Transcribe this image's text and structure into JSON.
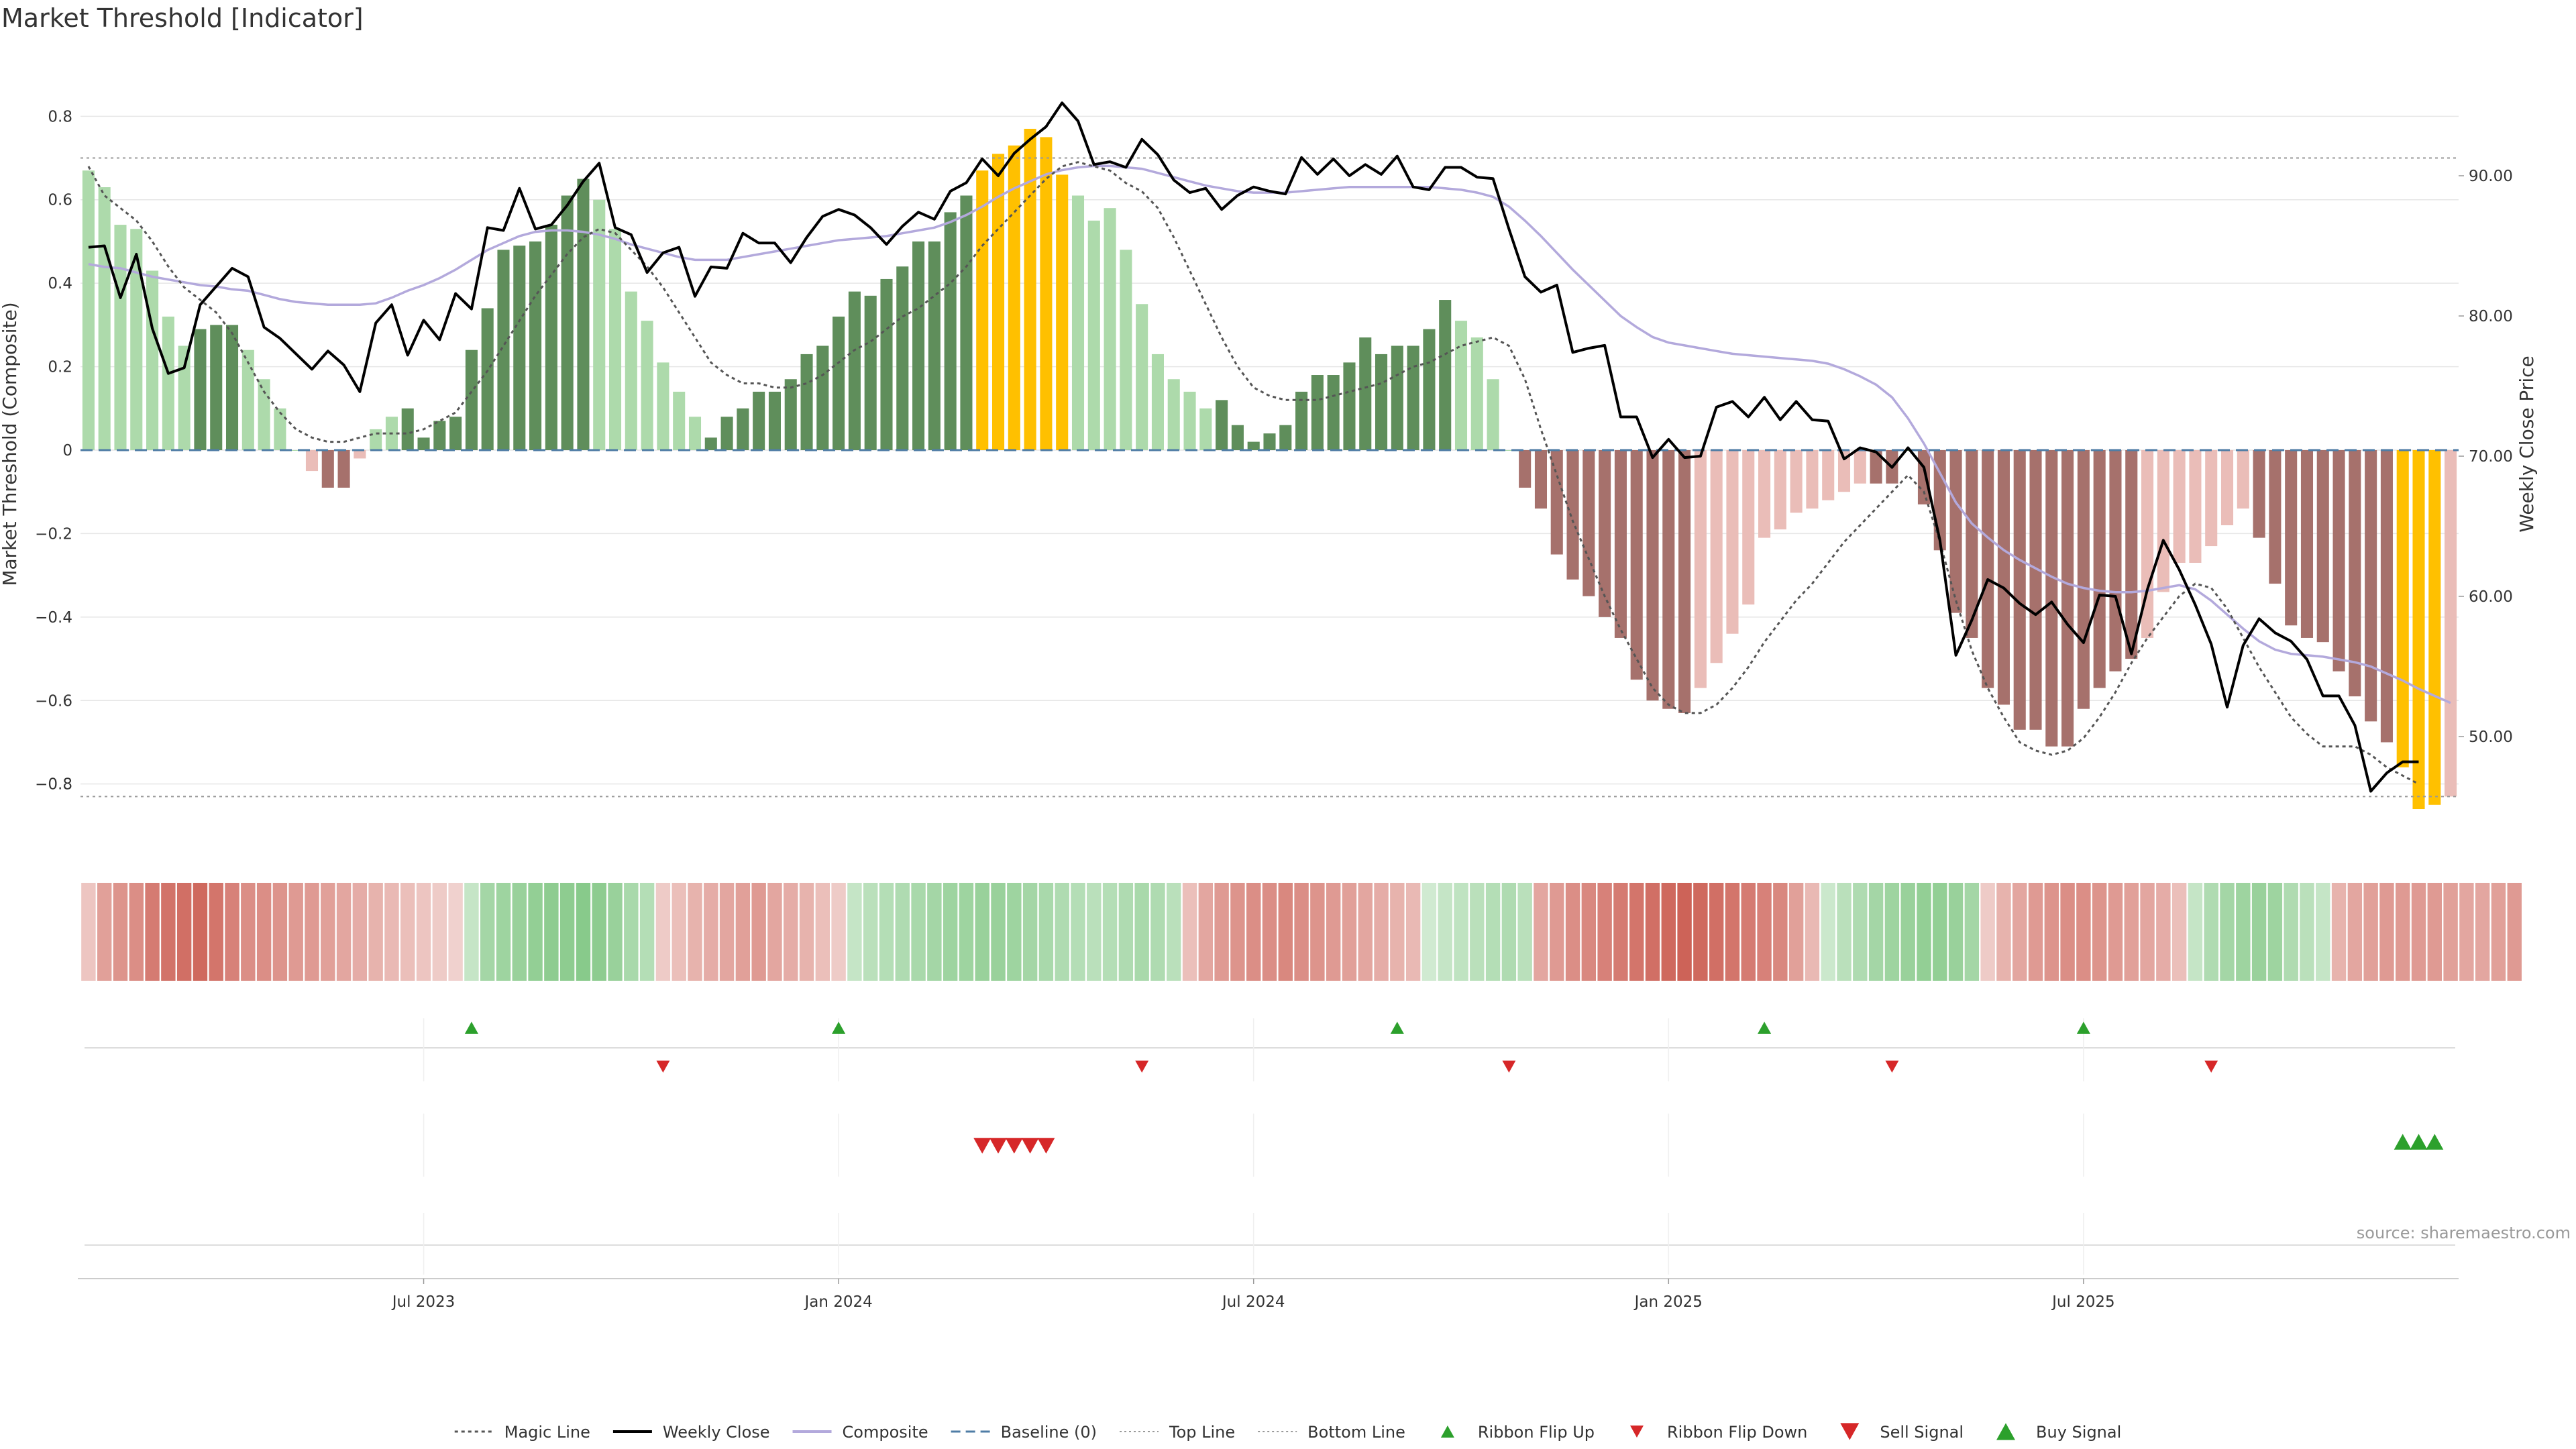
{
  "chart_data": {
    "type": "bar",
    "title": "Market Threshold [Indicator]",
    "ylabel": "Market Threshold (Composite)",
    "y2label": "Weekly Close Price",
    "source": "source: sharemaestro.com",
    "ylim": [
      -0.95,
      0.95
    ],
    "y_ticks": [
      0.8,
      0.6,
      0.4,
      0.2,
      0,
      -0.2,
      -0.4,
      -0.6,
      -0.8
    ],
    "y_tick_labels": [
      "0.8",
      "0.6",
      "0.4",
      "0.2",
      "0",
      "−0.2",
      "−0.4",
      "−0.6",
      "−0.8"
    ],
    "y2_ticks": [
      90,
      80,
      70,
      60,
      50
    ],
    "y2_tick_labels": [
      "90.00",
      "80.00",
      "70.00",
      "60.00",
      "50.00"
    ],
    "x_ticks": [
      {
        "week": 21.5,
        "label": "Jul 2023"
      },
      {
        "week": 47.5,
        "label": "Jan 2024"
      },
      {
        "week": 73.5,
        "label": "Jul 2024"
      },
      {
        "week": 99.5,
        "label": "Jan 2025"
      },
      {
        "week": 125.5,
        "label": "Jul 2025"
      }
    ],
    "top_line": 0.7,
    "bottom_line": -0.83,
    "baseline": 0,
    "composite": [
      0.67,
      0.63,
      0.54,
      0.53,
      0.43,
      0.32,
      0.25,
      0.29,
      0.3,
      0.3,
      0.24,
      0.17,
      0.1,
      0,
      -0.05,
      -0.09,
      -0.09,
      -0.02,
      0.05,
      0.08,
      0.1,
      0.03,
      0.07,
      0.08,
      0.24,
      0.34,
      0.48,
      0.49,
      0.5,
      0.54,
      0.61,
      0.65,
      0.6,
      0.53,
      0.38,
      0.31,
      0.21,
      0.14,
      0.08,
      0.03,
      0.08,
      0.1,
      0.14,
      0.14,
      0.17,
      0.23,
      0.25,
      0.32,
      0.38,
      0.37,
      0.41,
      0.44,
      0.5,
      0.5,
      0.57,
      0.61,
      0.67,
      0.71,
      0.73,
      0.77,
      0.75,
      0.66,
      0.61,
      0.55,
      0.58,
      0.48,
      0.35,
      0.23,
      0.17,
      0.14,
      0.1,
      0.12,
      0.06,
      0.02,
      0.04,
      0.06,
      0.14,
      0.18,
      0.18,
      0.21,
      0.27,
      0.23,
      0.25,
      0.25,
      0.29,
      0.36,
      0.31,
      0.27,
      0.17,
      0,
      -0.09,
      -0.14,
      -0.25,
      -0.31,
      -0.35,
      -0.4,
      -0.45,
      -0.55,
      -0.6,
      -0.62,
      -0.63,
      -0.57,
      -0.51,
      -0.44,
      -0.37,
      -0.21,
      -0.19,
      -0.15,
      -0.14,
      -0.12,
      -0.1,
      -0.08,
      -0.08,
      -0.08,
      0,
      -0.13,
      -0.24,
      -0.39,
      -0.45,
      -0.57,
      -0.61,
      -0.67,
      -0.67,
      -0.71,
      -0.71,
      -0.62,
      -0.57,
      -0.53,
      -0.5,
      -0.45,
      -0.34,
      -0.27,
      -0.27,
      -0.23,
      -0.18,
      -0.14,
      -0.21,
      -0.32,
      -0.42,
      -0.45,
      -0.46,
      -0.53,
      -0.59,
      -0.65,
      -0.7,
      -0.76,
      -0.86,
      -0.85,
      -0.83
    ],
    "weekly_close": [
      84.9,
      85.0,
      81.3,
      84.4,
      79.1,
      75.9,
      76.3,
      80.8,
      82.1,
      83.4,
      82.8,
      79.2,
      78.4,
      77.3,
      76.2,
      77.5,
      76.5,
      74.6,
      79.5,
      80.8,
      77.2,
      79.7,
      78.3,
      81.6,
      80.5,
      86.3,
      86.1,
      89.1,
      86.2,
      86.5,
      87.9,
      89.6,
      90.9,
      86.3,
      85.8,
      83.1,
      84.5,
      84.9,
      81.4,
      83.5,
      83.4,
      85.9,
      85.2,
      85.2,
      83.8,
      85.6,
      87.1,
      87.6,
      87.2,
      86.3,
      85.1,
      86.4,
      87.4,
      86.9,
      88.9,
      89.5,
      91.2,
      90.0,
      91.6,
      92.6,
      93.5,
      95.2,
      93.9,
      90.8,
      91.0,
      90.6,
      92.6,
      91.5,
      89.7,
      88.8,
      89.1,
      87.6,
      88.6,
      89.2,
      88.9,
      88.7,
      91.3,
      90.1,
      91.2,
      90.0,
      90.8,
      90.1,
      91.4,
      89.2,
      89.0,
      90.6,
      90.6,
      89.9,
      89.8,
      86.2,
      82.8,
      81.7,
      82.2,
      77.4,
      77.7,
      77.9,
      72.8,
      72.8,
      69.9,
      71.2,
      69.9,
      70.0,
      73.5,
      73.9,
      72.8,
      74.2,
      72.6,
      73.9,
      72.6,
      72.5,
      69.8,
      70.6,
      70.3,
      69.2,
      70.6,
      69.2,
      64.0,
      55.8,
      58.3,
      61.2,
      60.6,
      59.5,
      58.7,
      59.6,
      58.0,
      56.7,
      60.1,
      60.0,
      55.9,
      60.5,
      64.0,
      61.9,
      59.4,
      56.6,
      52.1,
      56.5,
      58.4,
      57.4,
      56.8,
      55.5,
      52.9,
      52.9,
      50.8,
      46.1,
      47.4,
      48.2,
      48.2
    ],
    "composite_line": [
      83.7,
      83.5,
      83.4,
      83.1,
      82.8,
      82.6,
      82.4,
      82.2,
      82.1,
      81.9,
      81.8,
      81.5,
      81.2,
      81.0,
      80.9,
      80.8,
      80.8,
      80.8,
      80.9,
      81.3,
      81.8,
      82.2,
      82.7,
      83.3,
      84.0,
      84.7,
      85.2,
      85.7,
      86.0,
      86.1,
      86.1,
      86.0,
      85.8,
      85.5,
      85.1,
      84.8,
      84.5,
      84.2,
      84.0,
      84.0,
      84.0,
      84.2,
      84.4,
      84.6,
      84.8,
      85.0,
      85.2,
      85.4,
      85.5,
      85.6,
      85.7,
      85.9,
      86.1,
      86.3,
      86.7,
      87.2,
      87.8,
      88.5,
      89.1,
      89.6,
      90.1,
      90.4,
      90.6,
      90.7,
      90.7,
      90.6,
      90.5,
      90.2,
      89.9,
      89.6,
      89.3,
      89.1,
      88.9,
      88.8,
      88.8,
      88.8,
      88.9,
      89.0,
      89.1,
      89.2,
      89.2,
      89.2,
      89.2,
      89.2,
      89.2,
      89.1,
      89.0,
      88.8,
      88.5,
      87.8,
      86.8,
      85.7,
      84.5,
      83.3,
      82.2,
      81.1,
      80.0,
      79.2,
      78.5,
      78.1,
      77.9,
      77.7,
      77.5,
      77.3,
      77.2,
      77.1,
      77.0,
      76.9,
      76.8,
      76.6,
      76.2,
      75.7,
      75.1,
      74.2,
      72.7,
      70.9,
      68.8,
      66.7,
      65.2,
      64.2,
      63.3,
      62.6,
      62.0,
      61.4,
      60.9,
      60.6,
      60.4,
      60.3,
      60.3,
      60.4,
      60.6,
      60.8,
      60.5,
      59.7,
      58.7,
      57.7,
      56.8,
      56.2,
      55.9,
      55.8,
      55.7,
      55.5,
      55.3,
      55.0,
      54.5,
      54.0,
      53.4,
      52.9,
      52.4
    ],
    "magic_line": [
      0.68,
      0.61,
      0.58,
      0.55,
      0.5,
      0.44,
      0.39,
      0.36,
      0.33,
      0.28,
      0.21,
      0.14,
      0.09,
      0.05,
      0.03,
      0.02,
      0.02,
      0.03,
      0.04,
      0.04,
      0.04,
      0.05,
      0.07,
      0.09,
      0.14,
      0.19,
      0.25,
      0.31,
      0.37,
      0.42,
      0.47,
      0.51,
      0.53,
      0.52,
      0.48,
      0.44,
      0.39,
      0.33,
      0.27,
      0.21,
      0.18,
      0.16,
      0.16,
      0.15,
      0.15,
      0.16,
      0.18,
      0.21,
      0.24,
      0.26,
      0.29,
      0.32,
      0.34,
      0.37,
      0.4,
      0.44,
      0.49,
      0.53,
      0.57,
      0.61,
      0.65,
      0.68,
      0.69,
      0.68,
      0.67,
      0.64,
      0.62,
      0.58,
      0.51,
      0.43,
      0.35,
      0.27,
      0.2,
      0.15,
      0.13,
      0.12,
      0.12,
      0.12,
      0.13,
      0.14,
      0.15,
      0.16,
      0.18,
      0.2,
      0.21,
      0.23,
      0.25,
      0.26,
      0.27,
      0.25,
      0.17,
      0.05,
      -0.06,
      -0.17,
      -0.26,
      -0.35,
      -0.43,
      -0.5,
      -0.57,
      -0.61,
      -0.63,
      -0.63,
      -0.61,
      -0.57,
      -0.52,
      -0.46,
      -0.41,
      -0.36,
      -0.32,
      -0.27,
      -0.22,
      -0.18,
      -0.14,
      -0.1,
      -0.06,
      -0.1,
      -0.22,
      -0.36,
      -0.48,
      -0.57,
      -0.64,
      -0.7,
      -0.72,
      -0.73,
      -0.72,
      -0.69,
      -0.64,
      -0.58,
      -0.51,
      -0.45,
      -0.4,
      -0.35,
      -0.32,
      -0.33,
      -0.38,
      -0.45,
      -0.52,
      -0.58,
      -0.64,
      -0.68,
      -0.71,
      -0.71,
      -0.71,
      -0.73,
      -0.76,
      -0.78,
      -0.8
    ],
    "bar_shades": {
      "pos_light": "#addaab",
      "pos_dark": "#5f8e5b",
      "neg_light": "#eabdb8",
      "neg_dark": "#a6716c",
      "threshold": "#ffc000"
    },
    "dark_bars": [
      7,
      8,
      9,
      15,
      16,
      20,
      21,
      22,
      23,
      24,
      25,
      26,
      27,
      28,
      29,
      30,
      31,
      39,
      40,
      41,
      42,
      43,
      44,
      45,
      46,
      47,
      48,
      49,
      50,
      51,
      52,
      53,
      54,
      55,
      71,
      72,
      73,
      74,
      75,
      76,
      77,
      78,
      79,
      80,
      81,
      82,
      83,
      84,
      85,
      90,
      91,
      92,
      93,
      94,
      95,
      96,
      97,
      98,
      99,
      100,
      112,
      113,
      114,
      115,
      116,
      117,
      118,
      119,
      120,
      121,
      122,
      123,
      124,
      125,
      126,
      127,
      128,
      136,
      137,
      138,
      139,
      140,
      141,
      142,
      143,
      144
    ],
    "threshold_bars": [
      56,
      57,
      58,
      59,
      60,
      61,
      145,
      146,
      147
    ],
    "ribbon": [
      -0.15,
      -0.45,
      -0.55,
      -0.6,
      -0.75,
      -0.82,
      -0.85,
      -0.9,
      -0.8,
      -0.7,
      -0.6,
      -0.6,
      -0.55,
      -0.5,
      -0.5,
      -0.45,
      -0.4,
      -0.35,
      -0.3,
      -0.25,
      -0.2,
      -0.15,
      -0.1,
      -0.05,
      0.2,
      0.5,
      0.55,
      0.6,
      0.65,
      0.7,
      0.7,
      0.75,
      0.7,
      0.6,
      0.45,
      0.35,
      -0.1,
      -0.2,
      -0.3,
      -0.35,
      -0.4,
      -0.45,
      -0.5,
      -0.4,
      -0.35,
      -0.3,
      -0.2,
      -0.1,
      0.2,
      0.3,
      0.35,
      0.4,
      0.45,
      0.5,
      0.55,
      0.55,
      0.6,
      0.6,
      0.55,
      0.5,
      0.45,
      0.4,
      0.35,
      0.3,
      0.35,
      0.4,
      0.45,
      0.4,
      0.3,
      -0.2,
      -0.4,
      -0.5,
      -0.55,
      -0.6,
      -0.6,
      -0.65,
      -0.6,
      -0.55,
      -0.5,
      -0.45,
      -0.4,
      -0.35,
      -0.3,
      -0.25,
      0.1,
      0.2,
      0.25,
      0.3,
      0.35,
      0.4,
      0.3,
      -0.4,
      -0.5,
      -0.6,
      -0.65,
      -0.7,
      -0.75,
      -0.8,
      -0.85,
      -0.9,
      -0.95,
      -0.9,
      -0.85,
      -0.8,
      -0.75,
      -0.7,
      -0.65,
      -0.45,
      -0.25,
      0.15,
      0.3,
      0.4,
      0.5,
      0.55,
      0.6,
      0.65,
      0.65,
      0.6,
      0.5,
      -0.1,
      -0.3,
      -0.4,
      -0.5,
      -0.55,
      -0.6,
      -0.6,
      -0.55,
      -0.5,
      -0.45,
      -0.4,
      -0.35,
      -0.2,
      0.2,
      0.4,
      0.5,
      0.55,
      0.6,
      0.55,
      0.4,
      0.3,
      0.2,
      -0.3,
      -0.4,
      -0.45,
      -0.5,
      -0.5,
      -0.5,
      -0.5,
      -0.45,
      -0.4,
      -0.4,
      -0.45,
      -0.5
    ],
    "ribbon_flip_up": [
      24,
      47,
      82,
      105,
      125
    ],
    "ribbon_flip_down": [
      36,
      66,
      89,
      113,
      133
    ],
    "sell_signal": [
      56,
      57,
      58,
      59,
      60
    ],
    "buy_signal": [
      145,
      146,
      147
    ],
    "colors": {
      "weekly_close": "#000000",
      "composite_line": "#b3a9dc",
      "magic_line": "#555555",
      "baseline": "#4f7da6",
      "guide_line": "#999999",
      "up_marker": "#2ca02c",
      "down_marker": "#d62728",
      "ribbon_pos": "#4caf50",
      "ribbon_neg": "#c0392b"
    },
    "legend": [
      {
        "label": "Magic Line",
        "kind": "dotted",
        "color": "#555555"
      },
      {
        "label": "Weekly Close",
        "kind": "solid",
        "color": "#000000"
      },
      {
        "label": "Composite",
        "kind": "solid",
        "color": "#b3a9dc"
      },
      {
        "label": "Baseline (0)",
        "kind": "dashed",
        "color": "#4f7da6"
      },
      {
        "label": "Top Line",
        "kind": "fine-dotted",
        "color": "#999999"
      },
      {
        "label": "Bottom Line",
        "kind": "fine-dotted",
        "color": "#999999"
      },
      {
        "label": "Ribbon Flip Up",
        "kind": "tri-up-small",
        "color": "#2ca02c"
      },
      {
        "label": "Ribbon Flip Down",
        "kind": "tri-down-small",
        "color": "#d62728"
      },
      {
        "label": "Sell Signal",
        "kind": "tri-down",
        "color": "#d62728"
      },
      {
        "label": "Buy Signal",
        "kind": "tri-up",
        "color": "#2ca02c"
      }
    ]
  }
}
